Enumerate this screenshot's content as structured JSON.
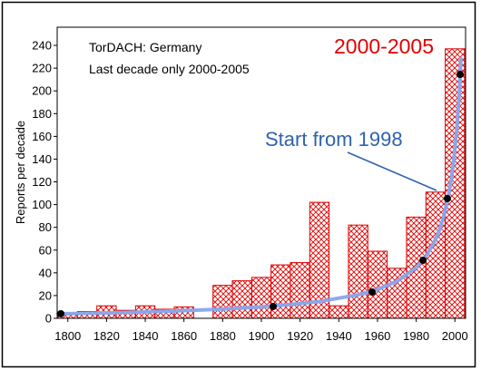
{
  "chart_data": {
    "type": "bar",
    "title": "",
    "xlabel": "",
    "ylabel": "Reports per decade",
    "xlim": [
      1794.5,
      2005.5
    ],
    "ylim": [
      0,
      256
    ],
    "xticks": [
      1800,
      1820,
      1840,
      1860,
      1880,
      1900,
      1920,
      1940,
      1960,
      1980,
      2000
    ],
    "yticks": [
      0,
      20,
      40,
      60,
      80,
      100,
      120,
      140,
      160,
      180,
      200,
      220,
      240
    ],
    "grid": false,
    "legend": "none",
    "text_box": [
      "TorDACH: Germany",
      "Last decade only 2000-2005"
    ],
    "annotations": {
      "last_bar_label": "2000-2005",
      "last_bar_label_color": "#e00000",
      "curve_label": "Start from 1998",
      "curve_label_color": "#2f62ad"
    },
    "series": [
      {
        "type": "bar",
        "fill": "crosshatch",
        "color": "#e00000",
        "bar_width": 10,
        "x": [
          1800,
          1810,
          1820,
          1830,
          1840,
          1850,
          1860,
          1870,
          1880,
          1890,
          1900,
          1910,
          1920,
          1930,
          1940,
          1950,
          1960,
          1970,
          1980,
          1990,
          2000
        ],
        "values": [
          4,
          6,
          11,
          7,
          11,
          8,
          10,
          0,
          29,
          33,
          36,
          47,
          49,
          102,
          11,
          82,
          59,
          44,
          89,
          111,
          237
        ]
      },
      {
        "type": "line",
        "color": "#86a6ee",
        "x": [
          1795,
          1810,
          1830,
          1850,
          1870,
          1890,
          1910,
          1930,
          1950,
          1960,
          1970,
          1980,
          1985,
          1990,
          1992,
          1994,
          1996,
          1997,
          1998,
          1999,
          2000,
          2000.5,
          2001,
          2001.5,
          2002,
          2002.4,
          2002.7,
          2003.1
        ],
        "y": [
          4.0,
          4.4,
          5.2,
          6.2,
          7.4,
          9.0,
          11.4,
          14.8,
          20.7,
          25.4,
          32.5,
          44.6,
          54.4,
          69.3,
          77.7,
          88.4,
          102.4,
          111.1,
          121.4,
          133.8,
          148.9,
          157.8,
          167.9,
          179.2,
          192.2,
          204.0,
          213.8,
          228.4
        ]
      },
      {
        "type": "scatter",
        "color": "#000000",
        "x": [
          1796.4,
          1906.1,
          1957.2,
          1983.5,
          1996.1,
          2002.7
        ],
        "y": [
          4.0,
          10.4,
          23.1,
          51.0,
          105.3,
          214.5
        ]
      }
    ]
  }
}
